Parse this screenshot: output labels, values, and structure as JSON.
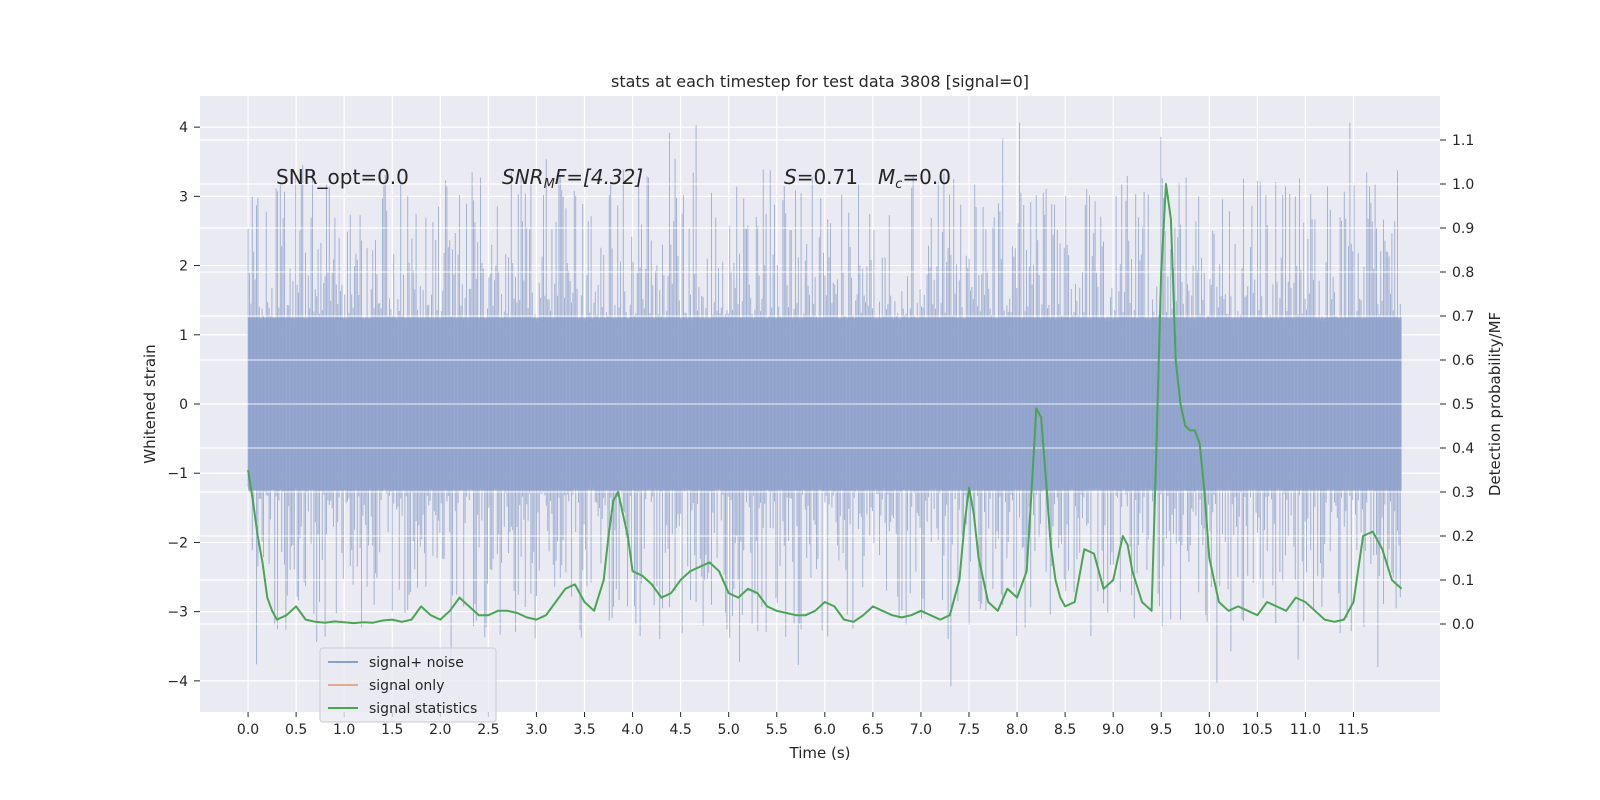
{
  "chart_data": {
    "type": "line",
    "title": "stats at each timestep for test data 3808 [signal=0]",
    "xlabel": "Time (s)",
    "ylabel_left": "Whitened strain",
    "ylabel_right": "Detection probability/MF",
    "xlim": [
      -0.5,
      12.4
    ],
    "ylim_left": [
      -4.45,
      4.45
    ],
    "ylim_right": [
      -0.2,
      1.2
    ],
    "x_ticks": [
      "0.0",
      "0.5",
      "1.0",
      "1.5",
      "2.0",
      "2.5",
      "3.0",
      "3.5",
      "4.0",
      "4.5",
      "5.0",
      "5.5",
      "6.0",
      "6.5",
      "7.0",
      "7.5",
      "8.0",
      "8.5",
      "9.0",
      "9.5",
      "10.0",
      "10.5",
      "11.0",
      "11.5"
    ],
    "y_ticks_left": [
      "4",
      "3",
      "2",
      "1",
      "0",
      "−1",
      "−2",
      "−3",
      "−4"
    ],
    "y_ticks_right": [
      "1.1",
      "1.0",
      "0.9",
      "0.8",
      "0.7",
      "0.6",
      "0.5",
      "0.4",
      "0.3",
      "0.2",
      "0.1",
      "0.0"
    ],
    "grid": true,
    "legend_position": "lower-left",
    "annotations": {
      "snr_opt": "SNR_opt=0.0",
      "snr_mf_main": "SNR",
      "snr_mf_sub": "M",
      "snr_mf_rest": "F=[4.32]",
      "s_main": "S",
      "s_rest": "=0.71",
      "mc_main": "M",
      "mc_sub": "c",
      "mc_rest": "=0.0"
    },
    "series": [
      {
        "name": "signal+ noise",
        "axis": "left",
        "color": "#8c9fca",
        "t_range": [
          0.0,
          12.0
        ],
        "envelope_abs": 4.1
      },
      {
        "name": "signal only",
        "axis": "left",
        "color": "#e2a98f",
        "values": []
      },
      {
        "name": "signal statistics",
        "axis": "right",
        "color": "#4aa552",
        "x": [
          0.0,
          0.05,
          0.1,
          0.15,
          0.2,
          0.25,
          0.3,
          0.4,
          0.5,
          0.6,
          0.7,
          0.8,
          0.9,
          1.0,
          1.1,
          1.2,
          1.3,
          1.4,
          1.5,
          1.6,
          1.7,
          1.8,
          1.9,
          2.0,
          2.1,
          2.2,
          2.3,
          2.4,
          2.5,
          2.6,
          2.7,
          2.8,
          2.9,
          3.0,
          3.1,
          3.2,
          3.3,
          3.4,
          3.5,
          3.6,
          3.7,
          3.75,
          3.8,
          3.85,
          3.9,
          3.95,
          4.0,
          4.1,
          4.2,
          4.3,
          4.4,
          4.5,
          4.6,
          4.7,
          4.8,
          4.9,
          5.0,
          5.1,
          5.2,
          5.3,
          5.4,
          5.5,
          5.6,
          5.7,
          5.8,
          5.9,
          6.0,
          6.1,
          6.2,
          6.3,
          6.4,
          6.5,
          6.6,
          6.7,
          6.8,
          6.9,
          7.0,
          7.1,
          7.2,
          7.3,
          7.4,
          7.45,
          7.5,
          7.55,
          7.6,
          7.7,
          7.8,
          7.9,
          8.0,
          8.1,
          8.15,
          8.2,
          8.25,
          8.3,
          8.35,
          8.4,
          8.45,
          8.5,
          8.6,
          8.7,
          8.8,
          8.9,
          9.0,
          9.1,
          9.15,
          9.2,
          9.3,
          9.4,
          9.45,
          9.5,
          9.55,
          9.6,
          9.65,
          9.7,
          9.75,
          9.8,
          9.85,
          9.9,
          9.95,
          10.0,
          10.1,
          10.2,
          10.3,
          10.4,
          10.5,
          10.6,
          10.7,
          10.8,
          10.9,
          11.0,
          11.1,
          11.2,
          11.3,
          11.4,
          11.5,
          11.6,
          11.7,
          11.8,
          11.9,
          12.0
        ],
        "values": [
          0.35,
          0.28,
          0.2,
          0.14,
          0.06,
          0.03,
          0.01,
          0.02,
          0.04,
          0.01,
          0.005,
          0.003,
          0.006,
          0.004,
          0.002,
          0.004,
          0.003,
          0.008,
          0.01,
          0.005,
          0.01,
          0.04,
          0.02,
          0.01,
          0.03,
          0.06,
          0.04,
          0.02,
          0.02,
          0.03,
          0.03,
          0.025,
          0.015,
          0.01,
          0.02,
          0.05,
          0.08,
          0.09,
          0.05,
          0.03,
          0.1,
          0.2,
          0.28,
          0.3,
          0.25,
          0.2,
          0.12,
          0.11,
          0.09,
          0.06,
          0.07,
          0.1,
          0.12,
          0.13,
          0.14,
          0.12,
          0.07,
          0.06,
          0.08,
          0.07,
          0.04,
          0.03,
          0.025,
          0.02,
          0.02,
          0.03,
          0.05,
          0.04,
          0.01,
          0.005,
          0.02,
          0.04,
          0.03,
          0.02,
          0.015,
          0.02,
          0.03,
          0.02,
          0.01,
          0.02,
          0.1,
          0.22,
          0.31,
          0.25,
          0.15,
          0.05,
          0.03,
          0.08,
          0.06,
          0.12,
          0.3,
          0.49,
          0.47,
          0.33,
          0.18,
          0.1,
          0.06,
          0.04,
          0.05,
          0.17,
          0.16,
          0.08,
          0.1,
          0.2,
          0.18,
          0.12,
          0.05,
          0.03,
          0.4,
          0.8,
          1.0,
          0.92,
          0.6,
          0.5,
          0.45,
          0.44,
          0.44,
          0.41,
          0.3,
          0.15,
          0.05,
          0.03,
          0.04,
          0.03,
          0.02,
          0.05,
          0.04,
          0.03,
          0.06,
          0.05,
          0.03,
          0.01,
          0.005,
          0.01,
          0.05,
          0.2,
          0.21,
          0.17,
          0.1,
          0.08
        ]
      }
    ]
  }
}
